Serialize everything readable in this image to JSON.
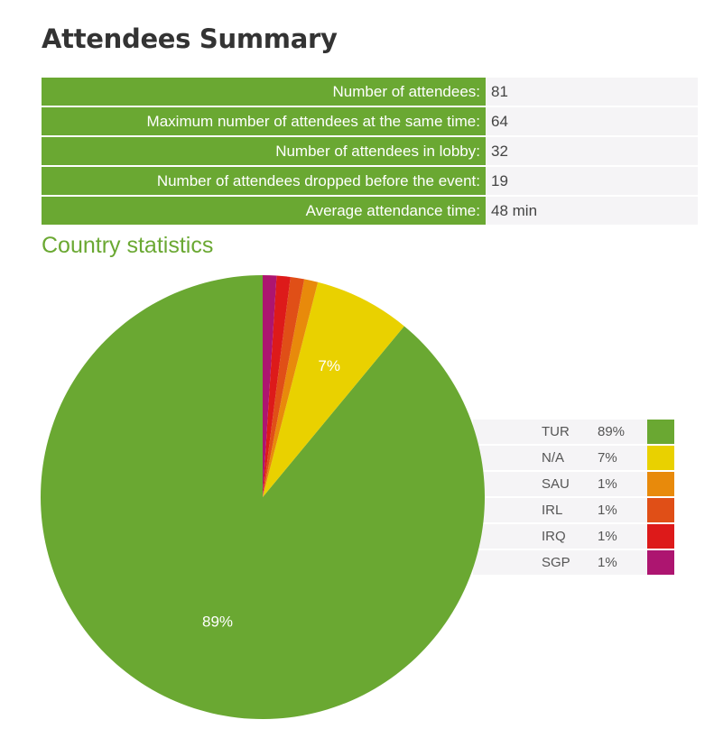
{
  "header": {
    "title": "Attendees Summary"
  },
  "summary": {
    "rows": [
      {
        "label": "Number of attendees:",
        "value": "81"
      },
      {
        "label": "Maximum number of attendees at the same time:",
        "value": "64"
      },
      {
        "label": "Number of attendees in lobby:",
        "value": "32"
      },
      {
        "label": "Number of attendees dropped before the event:",
        "value": "19"
      },
      {
        "label": "Average attendance time:",
        "value": "48 min"
      }
    ]
  },
  "country_section": {
    "title": "Country statistics"
  },
  "chart_data": {
    "type": "pie",
    "title": "",
    "categories": [
      "TUR",
      "N/A",
      "SAU",
      "IRL",
      "IRQ",
      "SGP"
    ],
    "values": [
      89,
      7,
      1,
      1,
      1,
      1
    ],
    "labels": [
      "89%",
      "7%",
      "1%",
      "1%",
      "1%",
      "1%"
    ],
    "colors": [
      "#6aa832",
      "#e9d100",
      "#e88a0b",
      "#e04f17",
      "#dd1a1a",
      "#ad1570"
    ],
    "legend": "right",
    "slice_labels_shown": [
      "89%",
      "7%"
    ]
  }
}
